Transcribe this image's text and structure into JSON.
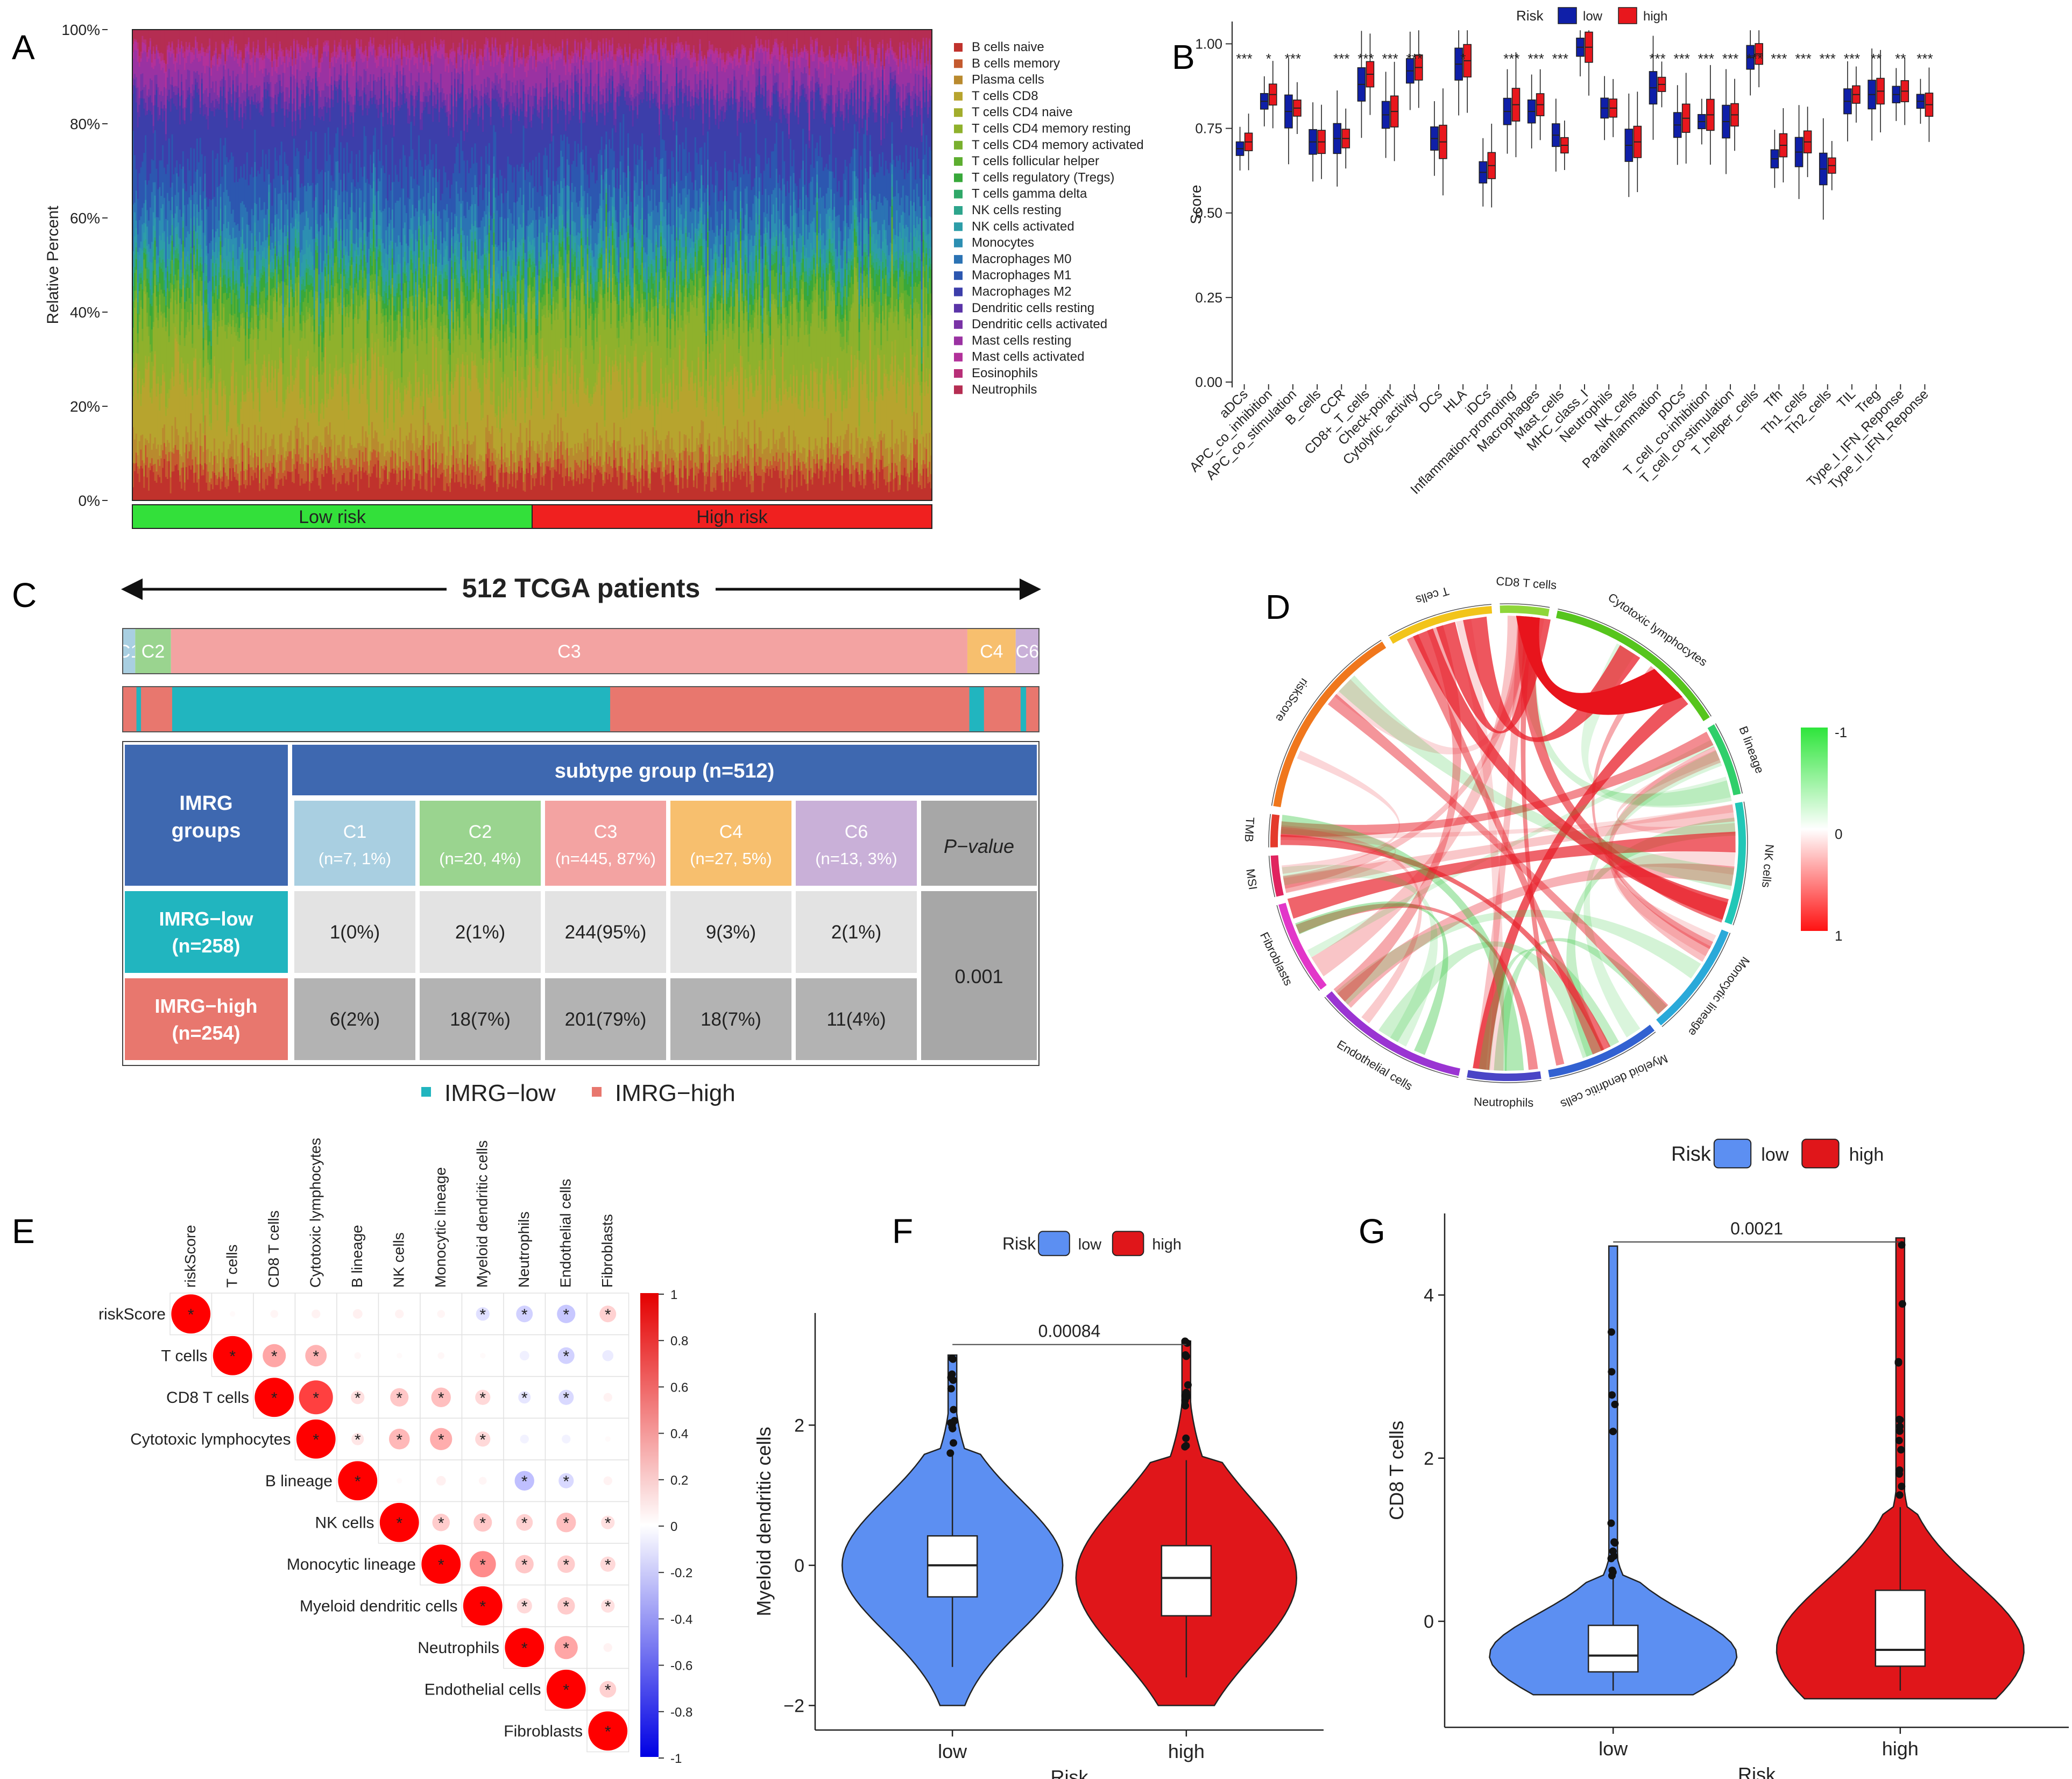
{
  "panels": {
    "A": "A",
    "B": "B",
    "C": "C",
    "D": "D",
    "E": "E",
    "F": "F",
    "G": "G"
  },
  "colors": {
    "low_blue": "#0f1fa8",
    "high_red": "#e8171d",
    "violin_low": "#5c8ff2",
    "violin_high": "#e0161a",
    "c1": "#a9cfe1",
    "c2": "#9ad48f",
    "c3": "#f3a3a2",
    "c4": "#f7bf6e",
    "c6": "#c9b0d8",
    "imrg_low": "#21b5bf",
    "imrg_high": "#e8776e",
    "header_blue": "#3e68b0"
  },
  "chart_data": [
    {
      "id": "A",
      "type": "bar",
      "subtype": "stacked-100",
      "ylabel": "Relative Percent",
      "yticks": [
        "0%",
        "20%",
        "40%",
        "60%",
        "80%",
        "100%"
      ],
      "ylim": [
        0,
        100
      ],
      "n_samples": 512,
      "groups": [
        {
          "label": "Low risk",
          "color": "#33e03a",
          "from": 0,
          "to": 0.5
        },
        {
          "label": "High risk",
          "color": "#f0201f",
          "from": 0.5,
          "to": 1
        }
      ],
      "legend": [
        {
          "name": "B cells naive",
          "color": "#c0322c",
          "mean_pct": 5
        },
        {
          "name": "B cells memory",
          "color": "#c45a2e",
          "mean_pct": 3
        },
        {
          "name": "Plasma cells",
          "color": "#b98a2e",
          "mean_pct": 4
        },
        {
          "name": "T cells CD8",
          "color": "#b7a42e",
          "mean_pct": 12
        },
        {
          "name": "T cells CD4 naive",
          "color": "#a2ad2c",
          "mean_pct": 2
        },
        {
          "name": "T cells CD4 memory resting",
          "color": "#8fb12c",
          "mean_pct": 12
        },
        {
          "name": "T cells CD4 memory activated",
          "color": "#79b02e",
          "mean_pct": 2
        },
        {
          "name": "T cells follicular helper",
          "color": "#5dae30",
          "mean_pct": 4
        },
        {
          "name": "T cells regulatory (Tregs)",
          "color": "#38a83a",
          "mean_pct": 3
        },
        {
          "name": "T cells gamma delta",
          "color": "#2fa868",
          "mean_pct": 2
        },
        {
          "name": "NK cells resting",
          "color": "#2da58c",
          "mean_pct": 2
        },
        {
          "name": "NK cells activated",
          "color": "#2d9da8",
          "mean_pct": 3
        },
        {
          "name": "Monocytes",
          "color": "#2c8fb2",
          "mean_pct": 4
        },
        {
          "name": "Macrophages M0",
          "color": "#2b73b4",
          "mean_pct": 6
        },
        {
          "name": "Macrophages M1",
          "color": "#2c57b0",
          "mean_pct": 8
        },
        {
          "name": "Macrophages M2",
          "color": "#3c3eaa",
          "mean_pct": 12
        },
        {
          "name": "Dendritic cells resting",
          "color": "#5a34a8",
          "mean_pct": 2
        },
        {
          "name": "Dendritic cells activated",
          "color": "#7a33a6",
          "mean_pct": 3
        },
        {
          "name": "Mast cells resting",
          "color": "#9a32a2",
          "mean_pct": 5
        },
        {
          "name": "Mast cells activated",
          "color": "#b2319a",
          "mean_pct": 2
        },
        {
          "name": "Eosinophils",
          "color": "#b82f78",
          "mean_pct": 1
        },
        {
          "name": "Neutrophils",
          "color": "#b52d52",
          "mean_pct": 4
        }
      ]
    },
    {
      "id": "B",
      "type": "box",
      "ylabel": "Score",
      "ylim": [
        0,
        1.05
      ],
      "yticks": [
        "0.00",
        "0.25",
        "0.50",
        "0.75",
        "1.00"
      ],
      "legend_title": "Risk",
      "legend": [
        {
          "name": "low",
          "color": "#0f1fa8"
        },
        {
          "name": "high",
          "color": "#e8171d"
        }
      ],
      "categories": [
        "aDCs",
        "APC_co_inhibition",
        "APC_co_stimulation",
        "B_cells",
        "CCR",
        "CD8+_T_cells",
        "Check-point",
        "Cytolytic_activity",
        "DCs",
        "HLA",
        "iDCs",
        "Inflammation-promoting",
        "Macrophages",
        "Mast_cells",
        "MHC_class_I",
        "Neutrophils",
        "NK_cells",
        "Parainflammation",
        "pDCs",
        "T_cell_co-inhibition",
        "T_cell_co-stimulation",
        "T_helper_cells",
        "Tfh",
        "Th1_cells",
        "Th2_cells",
        "TIL",
        "Treg",
        "Type_I_IFN_Reponse",
        "Type_II_IFN_Reponse"
      ],
      "significance": [
        "***",
        "*",
        "***",
        "",
        "***",
        "***",
        "***",
        "***",
        "",
        "*",
        "",
        "***",
        "***",
        "***",
        "",
        "",
        "",
        "***",
        "***",
        "***",
        "***",
        "***",
        "***",
        "***",
        "***",
        "***",
        "**",
        "**",
        "***"
      ],
      "series": [
        {
          "name": "low",
          "medians": [
            0.69,
            0.83,
            0.8,
            0.71,
            0.72,
            0.88,
            0.79,
            0.92,
            0.72,
            0.94,
            0.62,
            0.8,
            0.8,
            0.73,
            0.99,
            0.81,
            0.7,
            0.87,
            0.76,
            0.77,
            0.77,
            0.96,
            0.66,
            0.68,
            0.63,
            0.83,
            0.85,
            0.85,
            0.83
          ]
        },
        {
          "name": "high",
          "medians": [
            0.71,
            0.85,
            0.81,
            0.71,
            0.72,
            0.91,
            0.8,
            0.93,
            0.71,
            0.95,
            0.64,
            0.82,
            0.82,
            0.7,
            0.99,
            0.81,
            0.71,
            0.88,
            0.78,
            0.79,
            0.79,
            0.97,
            0.7,
            0.71,
            0.64,
            0.85,
            0.86,
            0.86,
            0.82
          ]
        }
      ]
    },
    {
      "id": "C",
      "type": "table",
      "title": "512 TCGA patients",
      "subtypes": [
        "C1",
        "C2",
        "C3",
        "C4",
        "C6"
      ],
      "subtype_counts": [
        7,
        20,
        445,
        27,
        13
      ],
      "header_group": "IMRG groups",
      "header_subtype": "subtype group (n=512)",
      "col_headers": [
        {
          "code": "C1",
          "detail": "(n=7, 1%)"
        },
        {
          "code": "C2",
          "detail": "(n=20, 4%)"
        },
        {
          "code": "C3",
          "detail": "(n=445, 87%)"
        },
        {
          "code": "C4",
          "detail": "(n=27, 5%)"
        },
        {
          "code": "C6",
          "detail": "(n=13, 3%)"
        }
      ],
      "pvalue_header": "P−value",
      "pvalue": "0.001",
      "rows": [
        {
          "group": "IMRG−low",
          "n": "(n=258)",
          "cells": [
            "1(0%)",
            "2(1%)",
            "244(95%)",
            "9(3%)",
            "2(1%)"
          ]
        },
        {
          "group": "IMRG−high",
          "n": "(n=254)",
          "cells": [
            "6(2%)",
            "18(7%)",
            "201(79%)",
            "18(7%)",
            "11(4%)"
          ]
        }
      ],
      "legend": [
        "IMRG−low",
        "IMRG−high"
      ]
    },
    {
      "id": "D",
      "type": "chord",
      "sectors": [
        "CD8 T cells",
        "Cytotoxic lymphocytes",
        "B lineage",
        "NK cells",
        "Monocytic lineage",
        "Myeloid dendritic cells",
        "Neutrophils",
        "Endothelial cells",
        "Fibroblasts",
        "MSI",
        "TMB",
        "riskScore",
        "T cells"
      ],
      "colorbar_ticks": [
        "-1",
        "0",
        "1"
      ]
    },
    {
      "id": "E",
      "type": "heatmap",
      "subtype": "correlation",
      "labels": [
        "riskScore",
        "T cells",
        "CD8 T cells",
        "Cytotoxic lymphocytes",
        "B lineage",
        "NK cells",
        "Monocytic lineage",
        "Myeloid dendritic cells",
        "Neutrophils",
        "Endothelial cells",
        "Fibroblasts"
      ],
      "colorbar_ticks": [
        "1",
        "0.8",
        "0.6",
        "0.4",
        "0.2",
        "0",
        "-0.2",
        "-0.4",
        "-0.6",
        "-0.8",
        "-1"
      ],
      "matrix": [
        [
          1,
          0.02,
          0.04,
          0.05,
          0.06,
          0.05,
          0.04,
          -0.12,
          -0.18,
          -0.22,
          0.18
        ],
        [
          0.02,
          1,
          0.35,
          0.3,
          0.03,
          0.02,
          0.03,
          0.02,
          -0.06,
          -0.18,
          -0.08
        ],
        [
          0.04,
          0.35,
          1,
          0.75,
          0.12,
          0.22,
          0.25,
          0.15,
          -0.1,
          -0.15,
          0.05
        ],
        [
          0.05,
          0.3,
          0.75,
          1,
          0.1,
          0.28,
          0.32,
          0.15,
          -0.05,
          -0.05,
          0.02
        ],
        [
          0.06,
          0.03,
          0.12,
          0.1,
          1,
          0.02,
          0.06,
          0.04,
          -0.25,
          -0.15,
          0.05
        ],
        [
          0.05,
          0.02,
          0.22,
          0.28,
          0.02,
          1,
          0.2,
          0.22,
          0.18,
          0.25,
          0.12
        ],
        [
          0.04,
          0.03,
          0.25,
          0.32,
          0.06,
          0.2,
          1,
          0.45,
          0.22,
          0.2,
          0.15
        ],
        [
          -0.12,
          0.02,
          0.15,
          0.15,
          0.04,
          0.22,
          0.45,
          1,
          0.15,
          0.2,
          0.12
        ],
        [
          -0.18,
          -0.06,
          -0.1,
          -0.05,
          -0.25,
          0.18,
          0.22,
          0.15,
          1,
          0.35,
          0.05
        ],
        [
          -0.22,
          -0.18,
          -0.15,
          -0.05,
          -0.15,
          0.25,
          0.2,
          0.2,
          0.35,
          1,
          0.18
        ],
        [
          0.18,
          -0.08,
          0.05,
          0.02,
          0.05,
          0.12,
          0.15,
          0.12,
          0.05,
          0.18,
          1
        ]
      ],
      "significant": [
        [
          1,
          0,
          0,
          0,
          0,
          0,
          0,
          1,
          1,
          1,
          1
        ],
        [
          0,
          1,
          1,
          1,
          0,
          0,
          0,
          0,
          0,
          1,
          0
        ],
        [
          0,
          1,
          1,
          1,
          1,
          1,
          1,
          1,
          1,
          1,
          0
        ],
        [
          0,
          1,
          1,
          1,
          1,
          1,
          1,
          1,
          0,
          0,
          0
        ],
        [
          0,
          0,
          1,
          1,
          1,
          0,
          0,
          0,
          1,
          1,
          0
        ],
        [
          0,
          0,
          1,
          1,
          0,
          1,
          1,
          1,
          1,
          1,
          1
        ],
        [
          0,
          0,
          1,
          1,
          0,
          1,
          1,
          1,
          1,
          1,
          1
        ],
        [
          1,
          0,
          1,
          1,
          0,
          1,
          1,
          1,
          1,
          1,
          1
        ],
        [
          1,
          0,
          1,
          0,
          1,
          1,
          1,
          1,
          1,
          1,
          0
        ],
        [
          1,
          1,
          1,
          0,
          1,
          1,
          1,
          1,
          1,
          1,
          1
        ],
        [
          1,
          0,
          0,
          0,
          0,
          1,
          1,
          1,
          0,
          1,
          1
        ]
      ]
    },
    {
      "id": "F",
      "type": "violin",
      "ylabel": "Myeloid dendritic cells",
      "xlabel": "Risk",
      "categories": [
        "low",
        "high"
      ],
      "yticks": [
        "−2",
        "0",
        "2"
      ],
      "ylim": [
        -2.35,
        3.6
      ],
      "legend_title": "Risk",
      "legend": [
        "low",
        "high"
      ],
      "pvalue": "0.00084",
      "boxes": [
        {
          "name": "low",
          "q1": -0.45,
          "median": 0.0,
          "q3": 0.42,
          "lower": -1.45,
          "upper": 1.6,
          "min": -2.0,
          "max": 3.0
        },
        {
          "name": "high",
          "q1": -0.72,
          "median": -0.18,
          "q3": 0.28,
          "lower": -1.6,
          "upper": 1.5,
          "min": -2.0,
          "max": 3.2
        }
      ]
    },
    {
      "id": "G",
      "type": "violin",
      "ylabel": "CD8 T cells",
      "xlabel": "Risk",
      "categories": [
        "low",
        "high"
      ],
      "yticks": [
        "0",
        "2",
        "4"
      ],
      "ylim": [
        -1.3,
        5.0
      ],
      "legend_title": "Risk",
      "legend": [
        "low",
        "high"
      ],
      "pvalue": "0.0021",
      "boxes": [
        {
          "name": "low",
          "q1": -0.62,
          "median": -0.42,
          "q3": -0.05,
          "lower": -0.85,
          "upper": 0.55,
          "min": -0.9,
          "max": 4.6
        },
        {
          "name": "high",
          "q1": -0.55,
          "median": -0.35,
          "q3": 0.38,
          "lower": -0.85,
          "upper": 1.4,
          "min": -0.95,
          "max": 4.7
        }
      ]
    }
  ]
}
